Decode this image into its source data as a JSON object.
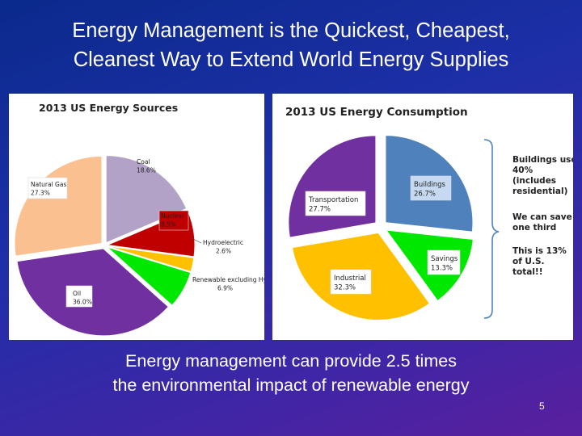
{
  "slide": {
    "title_line1": "Energy Management is the Quickest, Cheapest,",
    "title_line2": "Cleanest Way to Extend World Energy Supplies",
    "subtitle_line1": "Energy management can provide 2.5 times",
    "subtitle_line2": "the environmental impact of renewable energy",
    "page_number": "5"
  },
  "chart_data": [
    {
      "type": "pie",
      "title": "2013 US Energy Sources",
      "start_angle_deg": 0,
      "slices": [
        {
          "label": "Coal",
          "value": 18.6,
          "display": "18.6%",
          "color": "#b3a2c7"
        },
        {
          "label": "Nuclear",
          "value": 8.5,
          "display": "8.5%",
          "color": "#c00000"
        },
        {
          "label": "Hydroelectric",
          "value": 2.6,
          "display": "2.6%",
          "color": "#ffc000"
        },
        {
          "label": "Renewable excluding Hydro",
          "value": 6.9,
          "display": "6.9%",
          "color": "#00e800"
        },
        {
          "label": "Oil",
          "value": 36.0,
          "display": "36.0%",
          "color": "#7030a0"
        },
        {
          "label": "Natural Gas",
          "value": 27.3,
          "display": "27.3%",
          "color": "#fac090"
        }
      ]
    },
    {
      "type": "pie",
      "title": "2013 US Energy Consumption",
      "start_angle_deg": 0,
      "slices": [
        {
          "label": "Buildings",
          "value": 26.7,
          "display": "26.7%",
          "color": "#4f81bd"
        },
        {
          "label": "Savings",
          "value": 13.3,
          "display": "13.3%",
          "color": "#00e800"
        },
        {
          "label": "Industrial",
          "value": 32.3,
          "display": "32.3%",
          "color": "#ffc000"
        },
        {
          "label": "Transportation",
          "value": 27.7,
          "display": "27.7%",
          "color": "#7030a0"
        }
      ],
      "annotation_lines": [
        "Buildings use",
        "40%",
        "(includes",
        "residential)",
        "We can save",
        "one third",
        "This is 13%",
        "of U.S.",
        "total!!"
      ]
    }
  ]
}
